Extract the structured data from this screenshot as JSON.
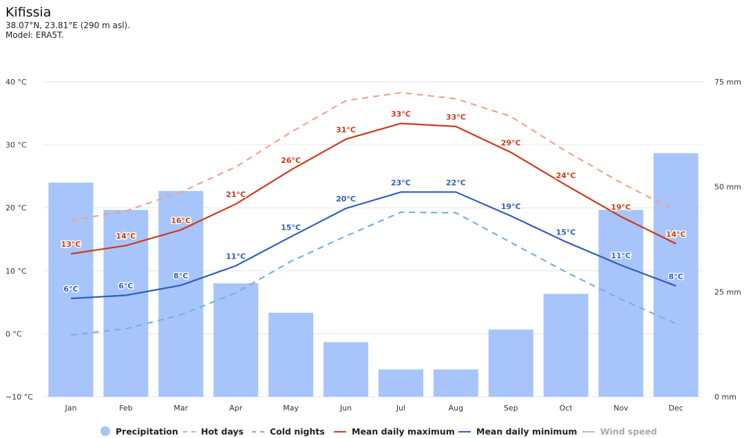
{
  "header": {
    "title": "Kifissia",
    "coords": "38.07°N, 23.81°E (290 m asl).",
    "model": "Model: ERA5T."
  },
  "legend": {
    "items": [
      {
        "label": "Precipitation",
        "kind": "dot",
        "color": "#a7c4fb"
      },
      {
        "label": "Hot days",
        "kind": "dashed",
        "color": "#f2a28e"
      },
      {
        "label": "Cold nights",
        "kind": "dashed",
        "color": "#79aee0"
      },
      {
        "label": "Mean daily maximum",
        "kind": "solid",
        "color": "#cc3a16"
      },
      {
        "label": "Mean daily minimum",
        "kind": "solid",
        "color": "#2f5db8"
      },
      {
        "label": "Wind speed",
        "kind": "solid",
        "color": "#bbbbbb",
        "disabled": true
      }
    ]
  },
  "chart_data": {
    "type": "bar",
    "categories": [
      "Jan",
      "Feb",
      "Mar",
      "Apr",
      "May",
      "Jun",
      "Jul",
      "Aug",
      "Sep",
      "Oct",
      "Nov",
      "Dec"
    ],
    "y_left": {
      "ticks": [
        -10,
        0,
        10,
        20,
        30,
        40
      ],
      "tick_labels": [
        "−10 °C",
        "0 °C",
        "10 °C",
        "20 °C",
        "30 °C",
        "40 °C"
      ],
      "range": [
        -10,
        40
      ]
    },
    "y_right": {
      "ticks": [
        0,
        25,
        50,
        75
      ],
      "tick_labels": [
        "0 mm",
        "25 mm",
        "50 mm",
        "75 mm"
      ],
      "range": [
        0,
        75
      ]
    },
    "grid": true,
    "legend_position": "bottom",
    "series": [
      {
        "name": "Precipitation",
        "kind": "bar",
        "axis": "right",
        "color": "#a7c4fb",
        "values": [
          51,
          44.5,
          49,
          27,
          20,
          13,
          6.5,
          6.5,
          16,
          24.5,
          44.5,
          58
        ]
      },
      {
        "name": "Hot days",
        "kind": "dashed-line",
        "axis": "left",
        "color": "#f2a28e",
        "values": [
          18,
          19.5,
          22.5,
          26.5,
          32,
          37,
          38.3,
          37.3,
          34.5,
          29,
          24,
          19.5
        ]
      },
      {
        "name": "Cold nights",
        "kind": "dashed-line",
        "axis": "left",
        "color": "#79aee0",
        "values": [
          -0.2,
          0.8,
          3,
          6.5,
          11.5,
          15.5,
          19.3,
          19.2,
          14.5,
          9.8,
          5.5,
          1.6
        ]
      },
      {
        "name": "Mean daily maximum",
        "kind": "line",
        "axis": "left",
        "color": "#cc3a16",
        "values": [
          12.7,
          14,
          16.5,
          20.6,
          26,
          30.9,
          33.4,
          32.9,
          28.8,
          23.6,
          18.6,
          14.3
        ],
        "labels": [
          "13°C",
          "14°C",
          "16°C",
          "21°C",
          "26°C",
          "31°C",
          "33°C",
          "33°C",
          "29°C",
          "24°C",
          "19°C",
          "14°C"
        ]
      },
      {
        "name": "Mean daily minimum",
        "kind": "line",
        "axis": "left",
        "color": "#2f5db8",
        "values": [
          5.6,
          6.1,
          7.7,
          10.8,
          15.4,
          19.9,
          22.5,
          22.5,
          18.7,
          14.6,
          10.9,
          7.6
        ],
        "labels": [
          "6°C",
          "6°C",
          "8°C",
          "11°C",
          "15°C",
          "20°C",
          "23°C",
          "22°C",
          "19°C",
          "15°C",
          "11°C",
          "8°C"
        ]
      }
    ]
  }
}
